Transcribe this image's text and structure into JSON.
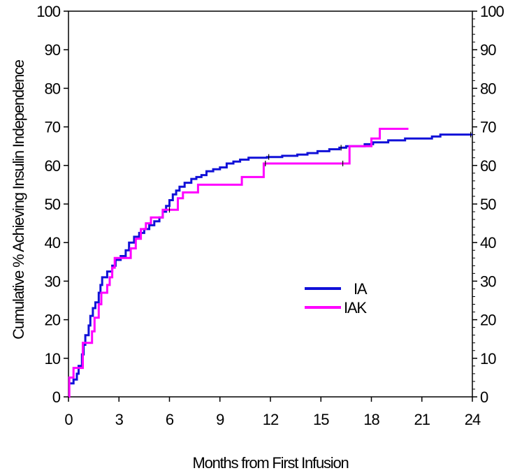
{
  "chart_data": {
    "type": "line",
    "xlabel": "Months from First Infusion",
    "ylabel": "Cumulative % Achieving Insulin Independence",
    "xlim": [
      0,
      24
    ],
    "ylim": [
      0,
      100
    ],
    "x_ticks": [
      "0",
      "3",
      "6",
      "9",
      "12",
      "15",
      "18",
      "21",
      "24"
    ],
    "y_ticks": [
      "0",
      "10",
      "20",
      "30",
      "40",
      "50",
      "60",
      "70",
      "80",
      "90",
      "100"
    ],
    "y_ticks_right": [
      "0",
      "10",
      "20",
      "30",
      "40",
      "50",
      "60",
      "70",
      "80",
      "90",
      "100"
    ],
    "grid": false,
    "legend": "center-right",
    "series": [
      {
        "name": "IA",
        "color": "#1010d8",
        "step": true,
        "points": [
          [
            0,
            3.5
          ],
          [
            0.3,
            4.5
          ],
          [
            0.5,
            6
          ],
          [
            0.6,
            8
          ],
          [
            0.8,
            11
          ],
          [
            0.9,
            13.5
          ],
          [
            1.0,
            16
          ],
          [
            1.2,
            18.5
          ],
          [
            1.3,
            21
          ],
          [
            1.45,
            23
          ],
          [
            1.6,
            24.5
          ],
          [
            1.8,
            27
          ],
          [
            1.9,
            29
          ],
          [
            2.0,
            31
          ],
          [
            2.3,
            32.5
          ],
          [
            2.6,
            34
          ],
          [
            2.8,
            35.5
          ],
          [
            3.1,
            36.5
          ],
          [
            3.4,
            38
          ],
          [
            3.6,
            40
          ],
          [
            3.9,
            41.5
          ],
          [
            4.2,
            42.5
          ],
          [
            4.5,
            43.5
          ],
          [
            4.8,
            44.5
          ],
          [
            5.1,
            45.5
          ],
          [
            5.4,
            46.5
          ],
          [
            5.6,
            48
          ],
          [
            5.8,
            49.5
          ],
          [
            6.0,
            51
          ],
          [
            6.2,
            52.5
          ],
          [
            6.4,
            53.5
          ],
          [
            6.6,
            54.5
          ],
          [
            6.9,
            55.5
          ],
          [
            7.3,
            56.5
          ],
          [
            7.6,
            57
          ],
          [
            7.9,
            57.5
          ],
          [
            8.2,
            58.5
          ],
          [
            8.6,
            59
          ],
          [
            9.0,
            59.5
          ],
          [
            9.4,
            60.5
          ],
          [
            9.8,
            61
          ],
          [
            10.2,
            61.5
          ],
          [
            10.7,
            62
          ],
          [
            11.8,
            62.2
          ],
          [
            12.7,
            62.5
          ],
          [
            13.6,
            62.8
          ],
          [
            14.2,
            63.2
          ],
          [
            14.8,
            63.7
          ],
          [
            15.5,
            64.2
          ],
          [
            16.1,
            64.6
          ],
          [
            16.5,
            65
          ],
          [
            17.6,
            65.5
          ],
          [
            18.1,
            66
          ],
          [
            19.0,
            66.5
          ],
          [
            20.0,
            67
          ],
          [
            21.6,
            67.5
          ],
          [
            22.1,
            68
          ],
          [
            24.0,
            68
          ]
        ]
      },
      {
        "name": "IAK",
        "color": "#ff00ff",
        "step": true,
        "points": [
          [
            0,
            0
          ],
          [
            0.05,
            5
          ],
          [
            0.3,
            7.5
          ],
          [
            0.85,
            14
          ],
          [
            1.4,
            17
          ],
          [
            1.55,
            20.5
          ],
          [
            1.8,
            24
          ],
          [
            1.95,
            27
          ],
          [
            2.3,
            29
          ],
          [
            2.45,
            31
          ],
          [
            2.6,
            33.5
          ],
          [
            2.75,
            36
          ],
          [
            3.7,
            38.5
          ],
          [
            4.0,
            41
          ],
          [
            4.3,
            43.5
          ],
          [
            4.6,
            45
          ],
          [
            4.9,
            46.5
          ],
          [
            5.6,
            48.5
          ],
          [
            6.5,
            51.5
          ],
          [
            6.8,
            53
          ],
          [
            7.7,
            55
          ],
          [
            10.3,
            57
          ],
          [
            11.6,
            60.5
          ],
          [
            16.7,
            65
          ],
          [
            18.0,
            67
          ],
          [
            18.5,
            69.5
          ],
          [
            20.2,
            69.5
          ]
        ]
      }
    ]
  }
}
